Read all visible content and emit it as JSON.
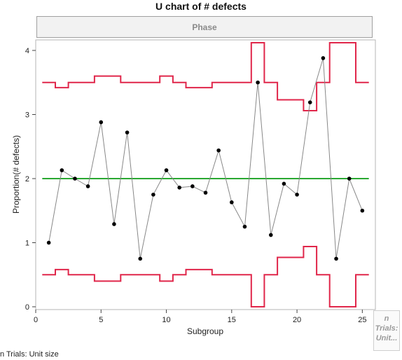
{
  "chart_data": {
    "type": "line",
    "title": "U chart of # defects",
    "phase_label": "Phase",
    "xlabel": "Subgroup",
    "ylabel": "Proportion(# defects)",
    "xlim": [
      0,
      26
    ],
    "ylim": [
      0,
      4.2
    ],
    "xticks": [
      0,
      5,
      10,
      15,
      20,
      25
    ],
    "yticks": [
      0,
      1,
      2,
      3,
      4
    ],
    "center_line": 2.0,
    "colors": {
      "limits": "#e0264a",
      "center": "#2aa832",
      "points": "#000000",
      "connector": "#888888"
    },
    "series": [
      {
        "x": [
          1,
          2,
          3,
          4,
          5,
          6,
          7,
          8,
          9,
          10,
          11,
          12,
          13,
          14,
          15,
          16,
          17,
          18,
          19,
          20,
          21,
          22,
          23,
          24,
          25
        ],
        "values": [
          1.0,
          2.13,
          2.0,
          1.88,
          2.88,
          1.29,
          2.72,
          0.75,
          1.75,
          2.13,
          1.86,
          1.88,
          1.78,
          2.44,
          1.63,
          1.25,
          3.5,
          1.12,
          1.92,
          1.75,
          3.19,
          3.88,
          0.75,
          2.0,
          1.5
        ]
      }
    ],
    "ucl": [
      3.5,
      3.42,
      3.5,
      3.5,
      3.6,
      3.6,
      3.5,
      3.5,
      3.5,
      3.6,
      3.5,
      3.42,
      3.42,
      3.5,
      3.5,
      3.5,
      4.12,
      3.5,
      3.23,
      3.23,
      3.06,
      3.5,
      4.12,
      4.12,
      3.5
    ],
    "lcl": [
      0.5,
      0.58,
      0.5,
      0.5,
      0.4,
      0.4,
      0.5,
      0.5,
      0.5,
      0.4,
      0.5,
      0.58,
      0.58,
      0.5,
      0.5,
      0.5,
      0.0,
      0.5,
      0.77,
      0.77,
      0.94,
      0.5,
      0.0,
      0.0,
      0.5
    ]
  },
  "side_legend": {
    "line1": "n",
    "line2": "Trials:",
    "line3": "Unit..."
  },
  "footnote": "n Trials: Unit size"
}
